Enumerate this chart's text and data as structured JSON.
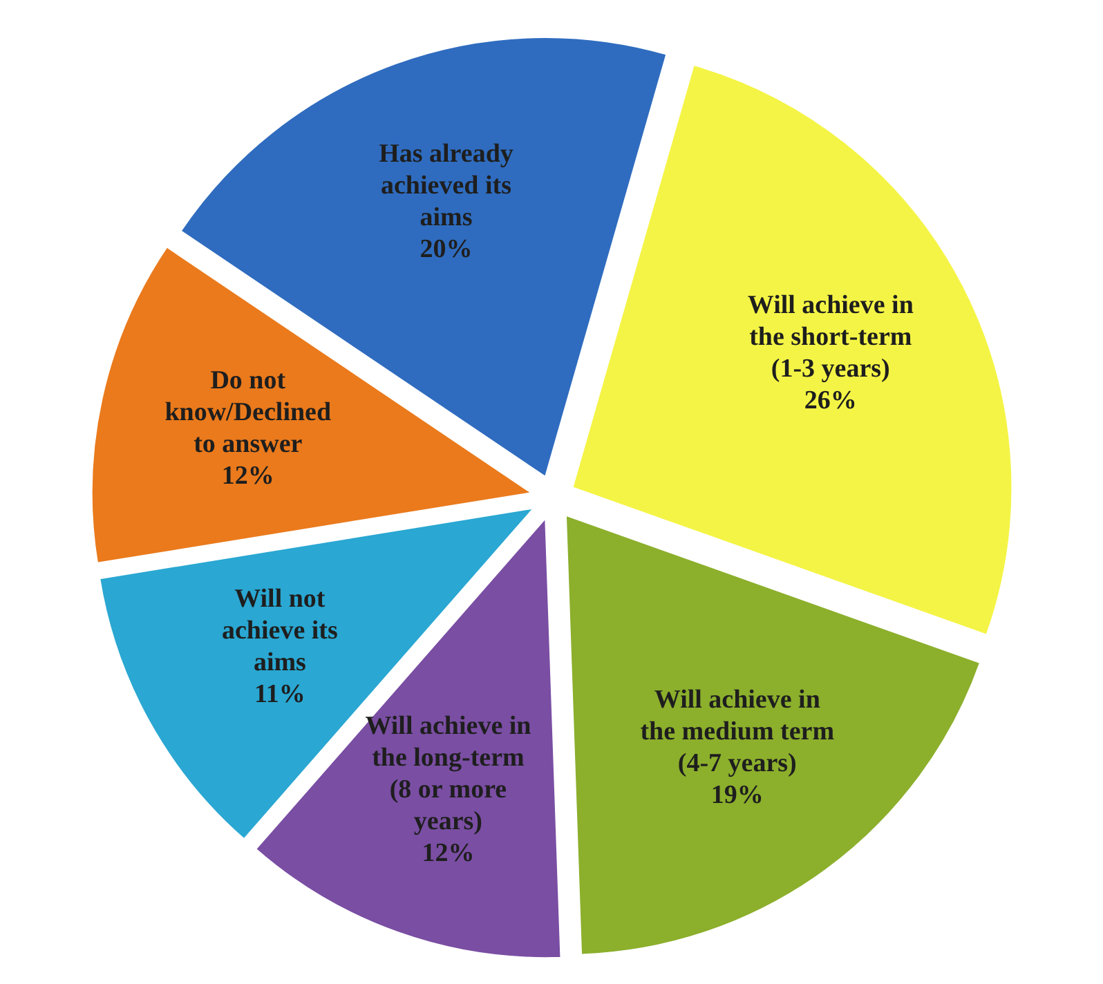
{
  "chart_data": {
    "type": "pie",
    "categories": [
      "Has already achieved its aims",
      "Will achieve in the short-term (1-3 years)",
      "Will achieve in the medium term (4-7 years)",
      "Will achieve in the long-term (8 or more years)",
      "Will not achieve its aims",
      "Do not know/Declined to answer"
    ],
    "values": [
      20,
      26,
      19,
      12,
      11,
      12
    ],
    "value_labels": [
      "20%",
      "26%",
      "19%",
      "12%",
      "11%",
      "12%"
    ],
    "colors": [
      "#2f6cbf",
      "#f4f446",
      "#8caf2c",
      "#7a4ea3",
      "#2aa7d2",
      "#ea7a1c"
    ]
  }
}
